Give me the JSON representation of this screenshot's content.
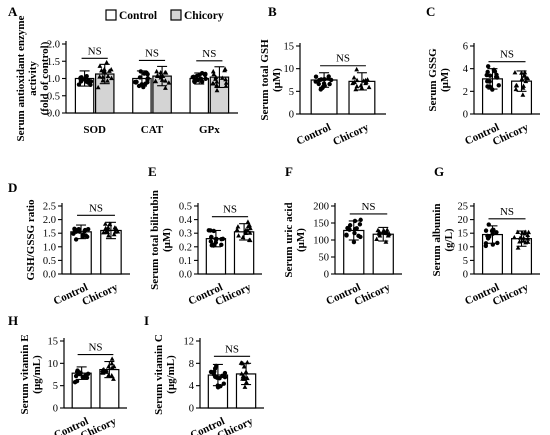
{
  "legend": {
    "control": "Control",
    "chicory": "Chicory"
  },
  "colors": {
    "control": "#ffffff",
    "chicory": "#d4d4d4",
    "axis": "#000000",
    "point": "#000000"
  },
  "chart_data": [
    {
      "id": "A",
      "type": "bar",
      "letter": "A",
      "ylabel": [
        "Serum antioxidant enzyme",
        "activity",
        "(fold of control)"
      ],
      "categories": [
        "SOD",
        "CAT",
        "GPx"
      ],
      "ylim": [
        0,
        2.0
      ],
      "yticks": [
        "0.0",
        "0.5",
        "1.0",
        "1.5",
        "2.0"
      ],
      "sig": "NS",
      "series": [
        {
          "name": "Control",
          "values": [
            1.0,
            1.0,
            1.0
          ],
          "sd": [
            0.22,
            0.22,
            0.16
          ]
        },
        {
          "name": "Chicory",
          "values": [
            1.13,
            1.07,
            1.04
          ],
          "sd": [
            0.28,
            0.28,
            0.3
          ]
        }
      ]
    },
    {
      "id": "B",
      "type": "bar",
      "letter": "B",
      "ylabel": [
        "Serum total GSH",
        "(μM)"
      ],
      "categories": [
        "Control",
        "Chicory"
      ],
      "ylim": [
        0,
        15
      ],
      "yticks": [
        "0",
        "5",
        "10",
        "15"
      ],
      "sig": "NS",
      "values": [
        7.5,
        7.2
      ],
      "sd": [
        1.6,
        1.9
      ]
    },
    {
      "id": "C",
      "type": "bar",
      "letter": "C",
      "ylabel": [
        "Serum GSSG",
        "(μM)"
      ],
      "categories": [
        "Control",
        "Chicory"
      ],
      "ylim": [
        0,
        6
      ],
      "yticks": [
        "0",
        "2",
        "4",
        "6"
      ],
      "sig": "NS",
      "values": [
        3.1,
        2.9
      ],
      "sd": [
        0.9,
        0.9
      ]
    },
    {
      "id": "D",
      "type": "bar",
      "letter": "D",
      "ylabel": [
        "GSH/GSSG ratio"
      ],
      "categories": [
        "Control",
        "Chicory"
      ],
      "ylim": [
        0,
        2.5
      ],
      "yticks": [
        "0.0",
        "0.5",
        "1.0",
        "1.5",
        "2.0",
        "2.5"
      ],
      "sig": "NS",
      "values": [
        1.55,
        1.6
      ],
      "sd": [
        0.25,
        0.3
      ]
    },
    {
      "id": "E",
      "type": "bar",
      "letter": "E",
      "ylabel": [
        "Serum total bilirubin",
        "(μM)"
      ],
      "categories": [
        "Control",
        "Chicory"
      ],
      "ylim": [
        0,
        0.5
      ],
      "yticks": [
        "0.0",
        "0.1",
        "0.2",
        "0.3",
        "0.4",
        "0.5"
      ],
      "sig": "NS",
      "values": [
        0.26,
        0.31
      ],
      "sd": [
        0.06,
        0.06
      ]
    },
    {
      "id": "F",
      "type": "bar",
      "letter": "F",
      "ylabel": [
        "Serum uric acid",
        "(μM)"
      ],
      "categories": [
        "Control",
        "Chicory"
      ],
      "ylim": [
        0,
        200
      ],
      "yticks": [
        "0",
        "50",
        "100",
        "150",
        "200"
      ],
      "sig": "NS",
      "values": [
        128,
        117
      ],
      "sd": [
        28,
        20
      ]
    },
    {
      "id": "G",
      "type": "bar",
      "letter": "G",
      "ylabel": [
        "Serum albumin",
        "(g/L)"
      ],
      "categories": [
        "Control",
        "Chicory"
      ],
      "ylim": [
        0,
        25
      ],
      "yticks": [
        "0",
        "5",
        "10",
        "15",
        "20",
        "25"
      ],
      "sig": "NS",
      "values": [
        14.5,
        13
      ],
      "sd": [
        3.2,
        2.8
      ]
    },
    {
      "id": "H",
      "type": "bar",
      "letter": "H",
      "ylabel": [
        "Serum vitamin E",
        "(μg/mL)"
      ],
      "categories": [
        "Control",
        "Chicory"
      ],
      "ylim": [
        0,
        15
      ],
      "yticks": [
        "0",
        "5",
        "10",
        "15"
      ],
      "sig": "NS",
      "values": [
        7.8,
        8.6
      ],
      "sd": [
        1.4,
        1.8
      ]
    },
    {
      "id": "I",
      "type": "bar",
      "letter": "I",
      "ylabel": [
        "Serum vitamin C",
        "(μg/mL)"
      ],
      "categories": [
        "Control",
        "Chicory"
      ],
      "ylim": [
        0,
        12
      ],
      "yticks": [
        "0",
        "4",
        "8",
        "12"
      ],
      "sig": "NS",
      "values": [
        5.9,
        6.1
      ],
      "sd": [
        1.9,
        1.9
      ]
    }
  ]
}
